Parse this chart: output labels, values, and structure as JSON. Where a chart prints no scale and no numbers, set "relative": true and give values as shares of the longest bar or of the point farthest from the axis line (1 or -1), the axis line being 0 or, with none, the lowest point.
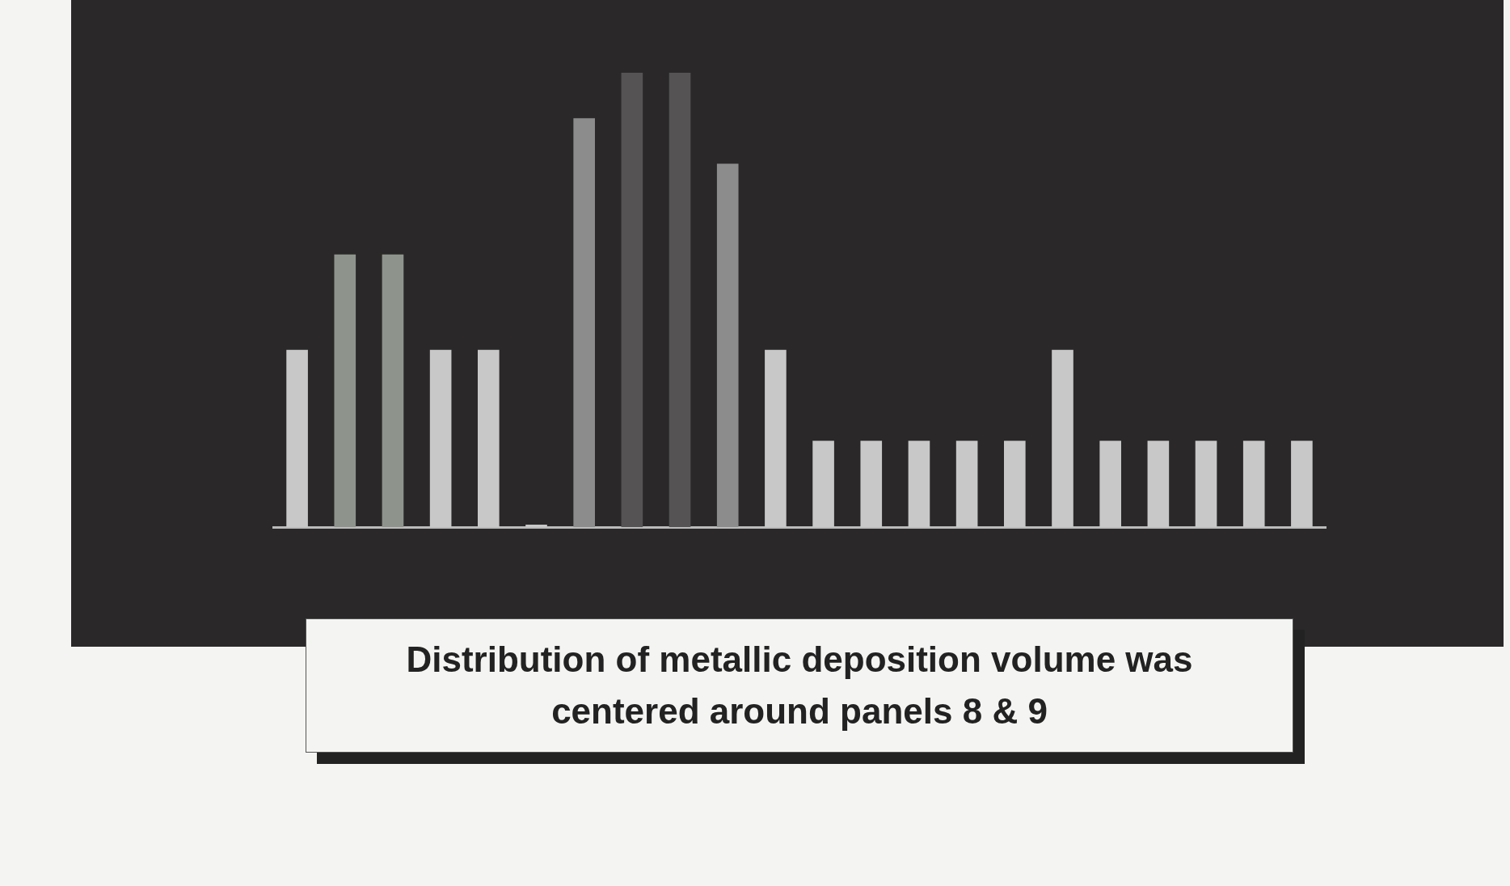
{
  "chart_data": {
    "type": "bar",
    "relative": true,
    "categories": [
      null,
      null,
      null,
      null,
      null,
      null,
      null,
      null,
      null,
      null,
      null,
      null,
      null,
      null,
      null,
      null,
      null,
      null,
      null,
      null,
      null,
      null
    ],
    "values": [
      0.39,
      0.6,
      0.6,
      0.39,
      0.39,
      0,
      0.9,
      1,
      1,
      0.8,
      0.39,
      0.19,
      0.19,
      0.19,
      0.19,
      0.19,
      0.39,
      0.19,
      0.19,
      0.19,
      0.19,
      0.19
    ],
    "colors": [
      "#c8c8c8",
      "#8e948c",
      "#8e948c",
      "#c8c8c8",
      "#c8c8c8",
      "#c8c8c8",
      "#8c8c8c",
      "#555353",
      "#555353",
      "#8c8c8c",
      "#c8c8c8",
      "#c8c8c8",
      "#c8c8c8",
      "#c8c8c8",
      "#c8c8c8",
      "#c8c8c8",
      "#c8c8c8",
      "#c8c8c8",
      "#c8c8c8",
      "#c8c8c8",
      "#c8c8c8",
      "#c8c8c8"
    ],
    "annotations": [
      "Distribution of metallic deposition volume was centered around panels 8 & 9"
    ]
  }
}
